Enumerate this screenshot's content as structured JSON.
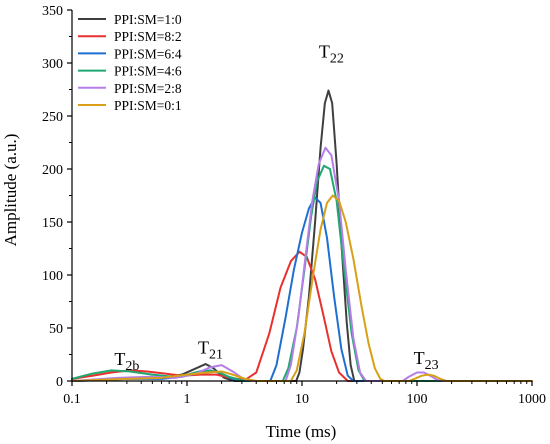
{
  "chart_data": {
    "type": "line",
    "xlabel": "Time (ms)",
    "ylabel": "Amplitude (a.u.)",
    "xscale": "log",
    "xlim": [
      0.1,
      1000
    ],
    "ylim": [
      0,
      350
    ],
    "x_ticks": [
      0.1,
      1,
      10,
      100,
      1000
    ],
    "x_tick_labels": [
      "0.1",
      "1",
      "10",
      "100",
      "1000"
    ],
    "y_ticks": [
      0,
      50,
      100,
      150,
      200,
      250,
      300,
      350
    ],
    "y_tick_labels": [
      "0",
      "50",
      "100",
      "150",
      "200",
      "250",
      "300",
      "350"
    ],
    "grid": false,
    "legend_position": "top-left",
    "annotations": [
      {
        "base": "T",
        "sub": "2b",
        "x": 0.3,
        "y": 15
      },
      {
        "base": "T",
        "sub": "21",
        "x": 1.6,
        "y": 26
      },
      {
        "base": "T",
        "sub": "22",
        "x": 18,
        "y": 305
      },
      {
        "base": "T",
        "sub": "23",
        "x": 120,
        "y": 16
      }
    ],
    "series": [
      {
        "name": "PPI:SM=1:0",
        "color": "#3f3f3f",
        "points": [
          [
            0.1,
            0
          ],
          [
            0.2,
            1
          ],
          [
            0.35,
            3
          ],
          [
            0.6,
            3
          ],
          [
            0.9,
            6
          ],
          [
            1.2,
            12
          ],
          [
            1.45,
            16
          ],
          [
            1.7,
            12
          ],
          [
            2.1,
            3
          ],
          [
            2.6,
            0
          ],
          [
            8.9,
            0
          ],
          [
            9.5,
            8
          ],
          [
            10.2,
            30
          ],
          [
            11.5,
            80
          ],
          [
            13,
            150
          ],
          [
            14.5,
            220
          ],
          [
            15.8,
            262
          ],
          [
            17,
            274
          ],
          [
            18.3,
            262
          ],
          [
            20,
            205
          ],
          [
            22,
            130
          ],
          [
            24.5,
            55
          ],
          [
            26.5,
            15
          ],
          [
            28.5,
            0
          ],
          [
            1000,
            0
          ]
        ]
      },
      {
        "name": "PPI:SM=8:2",
        "color": "#e8312f",
        "points": [
          [
            0.1,
            2
          ],
          [
            0.15,
            5
          ],
          [
            0.22,
            8
          ],
          [
            0.32,
            10
          ],
          [
            0.45,
            9
          ],
          [
            0.65,
            7
          ],
          [
            0.9,
            5
          ],
          [
            1.3,
            6
          ],
          [
            1.8,
            6
          ],
          [
            2.4,
            3
          ],
          [
            3.2,
            1
          ],
          [
            4,
            8
          ],
          [
            5.2,
            45
          ],
          [
            6.5,
            88
          ],
          [
            8,
            113
          ],
          [
            9.5,
            122
          ],
          [
            11,
            117
          ],
          [
            13,
            96
          ],
          [
            15.5,
            60
          ],
          [
            18,
            28
          ],
          [
            21,
            8
          ],
          [
            25,
            0
          ],
          [
            1000,
            0
          ]
        ]
      },
      {
        "name": "PPI:SM=6:4",
        "color": "#1f6fd1",
        "points": [
          [
            0.1,
            0
          ],
          [
            0.3,
            2
          ],
          [
            0.6,
            2
          ],
          [
            0.9,
            4
          ],
          [
            1.3,
            8
          ],
          [
            1.6,
            10
          ],
          [
            2,
            7
          ],
          [
            2.5,
            2
          ],
          [
            3,
            0
          ],
          [
            5.3,
            0
          ],
          [
            6,
            15
          ],
          [
            7.2,
            60
          ],
          [
            8.5,
            105
          ],
          [
            10,
            140
          ],
          [
            11.5,
            163
          ],
          [
            13,
            173
          ],
          [
            14.5,
            168
          ],
          [
            16.5,
            135
          ],
          [
            19,
            80
          ],
          [
            22,
            30
          ],
          [
            25,
            5
          ],
          [
            28,
            0
          ],
          [
            1000,
            0
          ]
        ]
      },
      {
        "name": "PPI:SM=4:6",
        "color": "#1fa870",
        "points": [
          [
            0.1,
            2
          ],
          [
            0.15,
            7
          ],
          [
            0.22,
            10
          ],
          [
            0.32,
            9
          ],
          [
            0.5,
            6
          ],
          [
            0.75,
            4
          ],
          [
            1,
            6
          ],
          [
            1.4,
            10
          ],
          [
            1.8,
            9
          ],
          [
            2.3,
            4
          ],
          [
            2.9,
            1
          ],
          [
            3.5,
            0
          ],
          [
            6.8,
            0
          ],
          [
            7.6,
            12
          ],
          [
            9,
            50
          ],
          [
            10.5,
            105
          ],
          [
            12,
            155
          ],
          [
            13.5,
            188
          ],
          [
            15.5,
            203
          ],
          [
            17.5,
            200
          ],
          [
            20,
            170
          ],
          [
            23,
            110
          ],
          [
            27,
            45
          ],
          [
            31,
            10
          ],
          [
            35,
            0
          ],
          [
            1000,
            0
          ]
        ]
      },
      {
        "name": "PPI:SM=2:8",
        "color": "#b57ee8",
        "points": [
          [
            0.1,
            0
          ],
          [
            0.25,
            3
          ],
          [
            0.5,
            4
          ],
          [
            0.8,
            3
          ],
          [
            1.2,
            7
          ],
          [
            1.6,
            13
          ],
          [
            2,
            15
          ],
          [
            2.5,
            9
          ],
          [
            3,
            3
          ],
          [
            3.6,
            0
          ],
          [
            7.2,
            0
          ],
          [
            8,
            15
          ],
          [
            9.3,
            60
          ],
          [
            10.8,
            120
          ],
          [
            12.3,
            170
          ],
          [
            14,
            205
          ],
          [
            16,
            220
          ],
          [
            18,
            213
          ],
          [
            21,
            170
          ],
          [
            24,
            105
          ],
          [
            28,
            40
          ],
          [
            32,
            8
          ],
          [
            36,
            0
          ],
          [
            75,
            0
          ],
          [
            85,
            4
          ],
          [
            100,
            8
          ],
          [
            115,
            8
          ],
          [
            130,
            5
          ],
          [
            150,
            1
          ],
          [
            170,
            0
          ],
          [
            1000,
            0
          ]
        ]
      },
      {
        "name": "PPI:SM=0:1",
        "color": "#d8a017",
        "points": [
          [
            0.1,
            0
          ],
          [
            0.3,
            2
          ],
          [
            0.6,
            3
          ],
          [
            1,
            6
          ],
          [
            1.5,
            8
          ],
          [
            2,
            9
          ],
          [
            2.5,
            6
          ],
          [
            3.2,
            2
          ],
          [
            4,
            0
          ],
          [
            8,
            0
          ],
          [
            9,
            10
          ],
          [
            10.5,
            45
          ],
          [
            12.5,
            100
          ],
          [
            14.5,
            143
          ],
          [
            16.5,
            168
          ],
          [
            18.5,
            175
          ],
          [
            21,
            170
          ],
          [
            24,
            150
          ],
          [
            28,
            115
          ],
          [
            33,
            70
          ],
          [
            38,
            35
          ],
          [
            43,
            12
          ],
          [
            48,
            2
          ],
          [
            52,
            0
          ],
          [
            85,
            0
          ],
          [
            95,
            2
          ],
          [
            110,
            5
          ],
          [
            125,
            6
          ],
          [
            140,
            5
          ],
          [
            160,
            2
          ],
          [
            180,
            0
          ],
          [
            1000,
            0
          ]
        ]
      }
    ]
  }
}
